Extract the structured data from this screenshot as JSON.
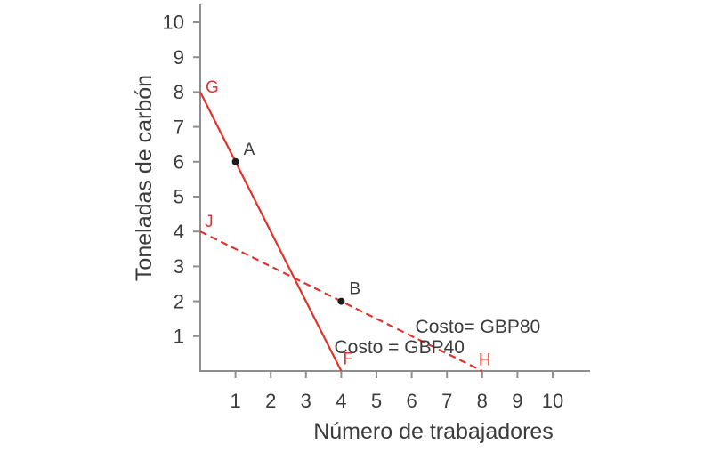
{
  "chart_data": {
    "type": "line",
    "title": "",
    "xlabel": "Número de trabajadores",
    "ylabel": "Toneladas de carbón",
    "xlim": [
      0,
      11
    ],
    "ylim": [
      0,
      10.5
    ],
    "xticks": [
      1,
      2,
      3,
      4,
      5,
      6,
      7,
      8,
      9,
      10
    ],
    "yticks": [
      1,
      2,
      3,
      4,
      5,
      6,
      7,
      8,
      9,
      10
    ],
    "grid": false,
    "legend": "none",
    "series": [
      {
        "name": "isocost-GBP40",
        "label": "Costo = GBP40",
        "style": "solid",
        "points": [
          [
            0,
            8
          ],
          [
            4,
            0
          ]
        ],
        "endpoint_labels": [
          {
            "text": "G",
            "x": 0.15,
            "y": 8.15
          },
          {
            "text": "F",
            "x": 4.05,
            "y": 0.36
          }
        ]
      },
      {
        "name": "isocost-GBP80",
        "label": "Costo= GBP80",
        "style": "dashed",
        "points": [
          [
            0,
            4
          ],
          [
            8,
            0
          ]
        ],
        "endpoint_labels": [
          {
            "text": "J",
            "x": 0.13,
            "y": 4.3
          },
          {
            "text": "H",
            "x": 7.9,
            "y": 0.33
          }
        ]
      }
    ],
    "markers": [
      {
        "label": "A",
        "x": 1,
        "y": 6
      },
      {
        "label": "B",
        "x": 4,
        "y": 2
      }
    ],
    "annotations": [
      {
        "text": "Costo = GBP40",
        "x": 3.8,
        "y": 0.7,
        "anchor": "start"
      },
      {
        "text": "Costo= GBP80",
        "x": 6.1,
        "y": 1.28,
        "anchor": "start"
      }
    ]
  },
  "colors": {
    "line_red": "#e2332d",
    "axis_gray": "#8e8e8e",
    "text_dark": "#3c3c3c",
    "marker_black": "#1c1c1c"
  }
}
